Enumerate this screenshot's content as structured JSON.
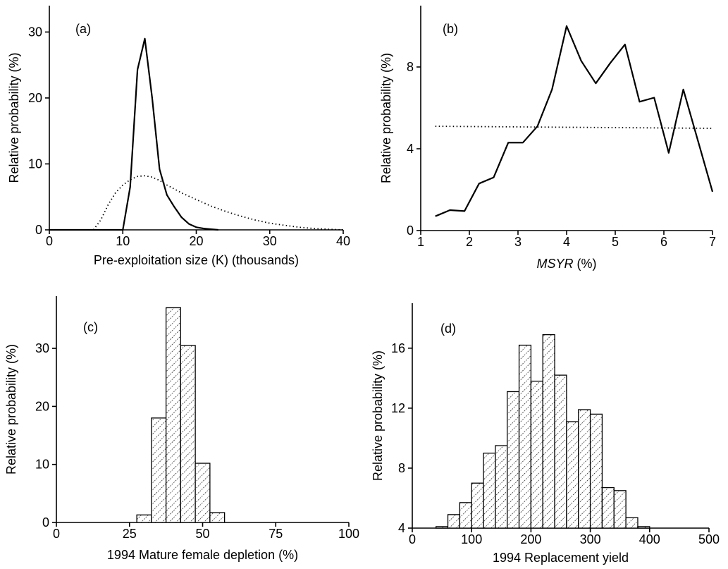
{
  "chart_data": [
    {
      "type": "line",
      "panel_label": "(a)",
      "xlabel": "Pre-exploitation size (K) (thousands)",
      "ylabel": "Relative probability (%)",
      "xlim": [
        0,
        40
      ],
      "ylim": [
        0,
        34
      ],
      "xticks": [
        0,
        10,
        20,
        30,
        40
      ],
      "yticks": [
        0,
        10,
        20,
        30
      ],
      "series": [
        {
          "style": "solid",
          "x": [
            0,
            10,
            11,
            12,
            13,
            14,
            15,
            16,
            17,
            18,
            19,
            20,
            21,
            22,
            23
          ],
          "y": [
            0,
            0,
            6.5,
            24.3,
            29.0,
            20.0,
            9.2,
            5.3,
            3.5,
            1.9,
            0.9,
            0.4,
            0.2,
            0.1,
            0
          ]
        },
        {
          "style": "dotted",
          "x": [
            6,
            7,
            8,
            9,
            10,
            11,
            12,
            13,
            14,
            15,
            16,
            17,
            18,
            20,
            22,
            24,
            26,
            28,
            30,
            32,
            34,
            36,
            38,
            40
          ],
          "y": [
            0,
            1.5,
            3.8,
            5.6,
            6.8,
            7.6,
            8.1,
            8.2,
            8.0,
            7.5,
            6.8,
            6.2,
            5.6,
            4.6,
            3.6,
            2.8,
            2.1,
            1.5,
            1.0,
            0.7,
            0.4,
            0.2,
            0.1,
            0
          ]
        }
      ]
    },
    {
      "type": "line",
      "panel_label": "(b)",
      "xlabel_italic": "MSYR",
      "xlabel_rest": " (%)",
      "ylabel": "Relative probability (%)",
      "xlim": [
        1,
        7
      ],
      "ylim": [
        0,
        11
      ],
      "xticks": [
        1,
        2,
        3,
        4,
        5,
        6,
        7
      ],
      "yticks": [
        0,
        4,
        8
      ],
      "series": [
        {
          "style": "solid",
          "x": [
            1.3,
            1.6,
            1.9,
            2.2,
            2.5,
            2.8,
            3.1,
            3.4,
            3.7,
            4.0,
            4.3,
            4.6,
            4.9,
            5.2,
            5.5,
            5.8,
            6.1,
            6.4,
            7.0
          ],
          "y": [
            0.7,
            1.0,
            0.95,
            2.3,
            2.6,
            4.3,
            4.3,
            5.1,
            6.9,
            10.0,
            8.3,
            7.2,
            8.2,
            9.1,
            6.3,
            6.5,
            3.8,
            6.9,
            1.9
          ]
        },
        {
          "style": "dotted",
          "x": [
            1.3,
            7.0
          ],
          "y": [
            5.1,
            5.0
          ]
        }
      ]
    },
    {
      "type": "bar",
      "panel_label": "(c)",
      "xlabel": "1994 Mature female depletion (%)",
      "ylabel": "Relative probability (%)",
      "xlim": [
        0,
        100
      ],
      "ylim": [
        0,
        39
      ],
      "xticks": [
        0,
        25,
        50,
        75,
        100
      ],
      "yticks": [
        0,
        10,
        20,
        30
      ],
      "bin_width": 5,
      "bins_start": [
        27.5,
        32.5,
        37.5,
        42.5,
        47.5,
        52.5
      ],
      "values": [
        1.3,
        18,
        37,
        30.5,
        10.2,
        1.7
      ]
    },
    {
      "type": "bar",
      "panel_label": "(d)",
      "xlabel": "1994 Replacement yield",
      "ylabel": "Relative probability (%)",
      "xlim": [
        0,
        500
      ],
      "ylim": [
        4,
        19
      ],
      "xticks": [
        0,
        100,
        200,
        300,
        400,
        500
      ],
      "yticks": [
        4,
        8,
        12,
        16
      ],
      "bin_width": 20,
      "bins_start": [
        40,
        60,
        80,
        100,
        120,
        140,
        160,
        180,
        200,
        220,
        240,
        260,
        280,
        300,
        320,
        340,
        360,
        380,
        400
      ],
      "values": [
        4.1,
        4.9,
        5.7,
        7.0,
        9.0,
        9.5,
        13.1,
        16.2,
        13.8,
        16.9,
        14.2,
        11.1,
        11.9,
        11.6,
        6.7,
        6.5,
        4.7,
        4.1,
        4.0
      ]
    }
  ]
}
